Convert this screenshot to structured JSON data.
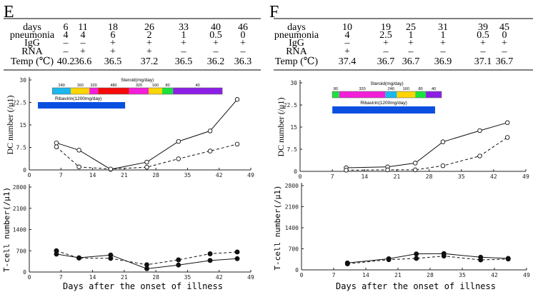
{
  "chart_data": [
    {
      "panel": "E",
      "type": "line",
      "table": {
        "row_labels": [
          "days",
          "pneumonia",
          "IgG",
          "RNA",
          "Temp (℃)"
        ],
        "columns": [
          [
            "6",
            "4",
            "–",
            "–",
            "40.2"
          ],
          [
            "11",
            "4",
            "–",
            "+",
            "36.6"
          ],
          [
            "18",
            "6",
            "+",
            "+",
            "36.5"
          ],
          [
            "26",
            "2",
            "+",
            "+",
            "37.2"
          ],
          [
            "33",
            "1",
            "+",
            "–",
            "36.5"
          ],
          [
            "40",
            "0.5",
            "+",
            "–",
            "36.2"
          ],
          [
            "46",
            "0",
            "+",
            "–",
            "36.3"
          ]
        ]
      },
      "dc": {
        "ylabel": "DC number (/μ1)",
        "ylim": [
          0,
          30
        ],
        "yticks": [
          "0",
          "7.5",
          "15",
          "22.5",
          "30"
        ],
        "x": [
          6,
          11,
          18,
          26,
          33,
          40,
          46
        ],
        "series": [
          {
            "name": "solid",
            "style": "solid",
            "values": [
              9,
              6.6,
              0.2,
              2.6,
              9.5,
              13,
              23.5
            ]
          },
          {
            "name": "dashed",
            "style": "dashed",
            "values": [
              7.7,
              1,
              0.3,
              0.9,
              3.7,
              6.3,
              8.6
            ]
          }
        ],
        "steroid": {
          "label": "Steroid(mg/day)",
          "segments": [
            {
              "dose": "240",
              "from": 5.1,
              "to": 9.2,
              "color": "#1ab8ee"
            },
            {
              "dose": "160",
              "from": 9.2,
              "to": 13.3,
              "color": "#ffd400"
            },
            {
              "dose": "320",
              "from": 13.3,
              "to": 15.2,
              "color": "#f21ed8"
            },
            {
              "dose": "480",
              "from": 15.2,
              "to": 22.1,
              "color": "#f50a0a"
            },
            {
              "dose": "320",
              "from": 22.1,
              "to": 26.4,
              "color": "#f21ed8"
            },
            {
              "dose": "160",
              "from": 26.4,
              "to": 29.4,
              "color": "#ffd400"
            },
            {
              "dose": "80",
              "from": 29.4,
              "to": 31.8,
              "color": "#19e23c"
            },
            {
              "dose": "40",
              "from": 31.8,
              "to": 42.7,
              "color": "#8c1ee6"
            }
          ]
        },
        "ribavirin": {
          "label": "Ribavirin(1200mg/day)",
          "from": 1.9,
          "to": 21.2,
          "color": "#0a4fe0"
        }
      },
      "tcell": {
        "ylabel": "T-cell number(/μ1)",
        "ylim": [
          0,
          2800
        ],
        "yticks": [
          "0",
          "700",
          "1400",
          "2100",
          "2800"
        ],
        "x": [
          6,
          11,
          18,
          26,
          33,
          40,
          46
        ],
        "series": [
          {
            "name": "solid",
            "style": "solid",
            "values": [
              590,
              470,
              560,
              110,
              230,
              380,
              440
            ]
          },
          {
            "name": "dashed",
            "style": "dashed",
            "values": [
              700,
              460,
              450,
              240,
              400,
              600,
              660
            ]
          }
        ]
      },
      "xlim": [
        0,
        49
      ],
      "xticks": [
        "0",
        "7",
        "14",
        "21",
        "28",
        "35",
        "42",
        "49"
      ],
      "xlabel": "Days after the onset of illness"
    },
    {
      "panel": "F",
      "type": "line",
      "table": {
        "row_labels": [
          "days",
          "pneumonia",
          "IgG",
          "RNA",
          "Temp (℃)"
        ],
        "columns": [
          [
            "10",
            "4",
            "–",
            "+",
            "37.4"
          ],
          [
            "19",
            "2.5",
            "+",
            "–",
            "36.7"
          ],
          [
            "25",
            "1",
            "+",
            "–",
            "36.7"
          ],
          [
            "31",
            "1",
            "+",
            "–",
            "36.9"
          ],
          [
            "39",
            "0.5",
            "+",
            "–",
            "37.1"
          ],
          [
            "45",
            "0",
            "+",
            "–",
            "36.7"
          ]
        ]
      },
      "dc": {
        "ylabel": "DC number (/μ1)",
        "ylim": [
          0,
          30
        ],
        "yticks": [
          "0",
          "7.5",
          "15",
          "22.5",
          "30"
        ],
        "x": [
          10,
          19,
          25,
          31,
          39,
          45
        ],
        "series": [
          {
            "name": "solid",
            "style": "solid",
            "values": [
              1.2,
              1.5,
              2.8,
              10,
              13.8,
              16.5
            ]
          },
          {
            "name": "dashed",
            "style": "dashed",
            "values": [
              0.4,
              0.5,
              0.5,
              1.9,
              5.2,
              11.5
            ]
          }
        ],
        "steroid": {
          "label": "Steroid(mg/day)",
          "segments": [
            {
              "dose": "80",
              "from": 7,
              "to": 8.5,
              "color": "#19e23c"
            },
            {
              "dose": "320",
              "from": 8.5,
              "to": 18.5,
              "color": "#f21ed8"
            },
            {
              "dose": "240",
              "from": 18.5,
              "to": 21,
              "color": "#1ab8ee"
            },
            {
              "dose": "160",
              "from": 21,
              "to": 25,
              "color": "#ffd400"
            },
            {
              "dose": "80",
              "from": 25,
              "to": 27.3,
              "color": "#19e23c"
            },
            {
              "dose": "40",
              "from": 27.3,
              "to": 30.7,
              "color": "#8c1ee6"
            }
          ]
        },
        "ribavirin": {
          "label": "Ribavirin(1200mg/day)",
          "from": 7,
          "to": 29.3,
          "color": "#0a4fe0"
        }
      },
      "tcell": {
        "ylabel": "T-cell number(/μ1)",
        "ylim": [
          0,
          2800
        ],
        "yticks": [
          "0",
          "700",
          "1400",
          "2100",
          "2800"
        ],
        "x": [
          10,
          19,
          25,
          31,
          39,
          45
        ],
        "series": [
          {
            "name": "solid",
            "style": "solid",
            "values": [
              230,
              370,
              530,
              540,
              420,
              380
            ]
          },
          {
            "name": "dashed",
            "style": "dashed",
            "values": [
              200,
              340,
              380,
              460,
              330,
              360
            ]
          }
        ]
      },
      "xlim": [
        0,
        49
      ],
      "xticks": [
        "0",
        "7",
        "14",
        "21",
        "28",
        "35",
        "42",
        "49"
      ],
      "xlabel": "Days after the onset of illness"
    }
  ]
}
